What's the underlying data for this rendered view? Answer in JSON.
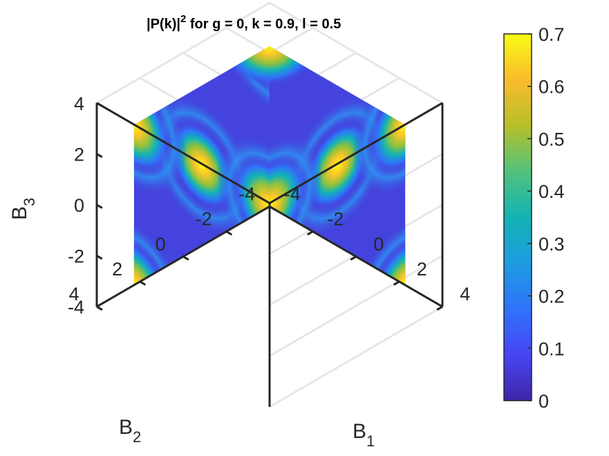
{
  "chart_data": {
    "type": "scatter3d",
    "title_prefix": "|P(k)|",
    "title_sup": "2",
    "title_suffix": " for g = 0, k = 0.9, l = 0.5",
    "xlabel_main": "B",
    "xlabel_sub": "1",
    "ylabel_main": "B",
    "ylabel_sub": "2",
    "zlabel_main": "B",
    "zlabel_sub": "3",
    "xlim": [
      -4,
      4
    ],
    "ylim": [
      -4,
      4
    ],
    "zlim": [
      -4,
      4
    ],
    "box_half_extent": 3.14,
    "xticks": [
      {
        "v": -4,
        "label": "-4"
      },
      {
        "v": -2,
        "label": "-2"
      },
      {
        "v": 0,
        "label": "0"
      },
      {
        "v": 2,
        "label": "2"
      },
      {
        "v": 4,
        "label": "4"
      }
    ],
    "yticks": [
      {
        "v": -4,
        "label": "-4"
      },
      {
        "v": -2,
        "label": "-2"
      },
      {
        "v": 0,
        "label": "0"
      },
      {
        "v": 2,
        "label": "2"
      },
      {
        "v": 4,
        "label": "4"
      }
    ],
    "zticks": [
      {
        "v": -4,
        "label": "-4"
      },
      {
        "v": -2,
        "label": "-2"
      },
      {
        "v": 0,
        "label": "0"
      },
      {
        "v": 2,
        "label": "2"
      },
      {
        "v": 4,
        "label": "4"
      }
    ],
    "grid": true,
    "colormap": "parula",
    "clim": [
      0,
      0.7
    ],
    "colorbar_ticks": [
      {
        "v": 0,
        "label": "0"
      },
      {
        "v": 0.1,
        "label": "0.1"
      },
      {
        "v": 0.2,
        "label": "0.2"
      },
      {
        "v": 0.3,
        "label": "0.3"
      },
      {
        "v": 0.4,
        "label": "0.4"
      },
      {
        "v": 0.5,
        "label": "0.5"
      },
      {
        "v": 0.6,
        "label": "0.6"
      },
      {
        "v": 0.7,
        "label": "0.7"
      }
    ],
    "faces": {
      "top": {
        "plane": "B3 = max",
        "peaks": [
          {
            "b1": 0,
            "b2": 0,
            "value": 0.62
          },
          {
            "b1": 3.14,
            "b2": 3.14,
            "value": 0.62
          }
        ],
        "saddle_lines": [
          {
            "along": "b1",
            "at_b2": 3.14,
            "value": 0.2
          },
          {
            "along": "b2",
            "at_b1": 3.14,
            "value": 0.2
          }
        ]
      },
      "left": {
        "plane": "B1 = min",
        "peaks": [
          {
            "b2": 0,
            "b3": 0,
            "value": 0.62
          },
          {
            "b2": 3.14,
            "b3": 3.14,
            "value": 0.68
          },
          {
            "b2": 3.14,
            "b3": -3.14,
            "value": 0.68
          },
          {
            "b2": -3.14,
            "b3": -3.14,
            "value": 0.7
          },
          {
            "b2": -3.14,
            "b3": 3.14,
            "value": 0.7
          }
        ],
        "saddle_lines": [
          {
            "along": "b2",
            "at_b3": 3.14,
            "value": 0.2
          },
          {
            "along": "b3",
            "at_b2": -3.14,
            "value": 0.2
          }
        ]
      },
      "right": {
        "plane": "B2 = min",
        "peaks": [
          {
            "b1": 0,
            "b3": 0,
            "value": 0.62
          },
          {
            "b1": 3.14,
            "b3": 3.14,
            "value": 0.68
          },
          {
            "b1": 3.14,
            "b3": -3.14,
            "value": 0.68
          },
          {
            "b1": -3.14,
            "b3": -3.14,
            "value": 0.7
          }
        ],
        "saddle_lines": [
          {
            "along": "b1",
            "at_b3": 3.14,
            "value": 0.2
          },
          {
            "along": "b3",
            "at_b1": -3.14,
            "value": 0.2
          }
        ]
      },
      "corner_peak": {
        "at": "top-front corner",
        "value": 0.68
      }
    }
  }
}
